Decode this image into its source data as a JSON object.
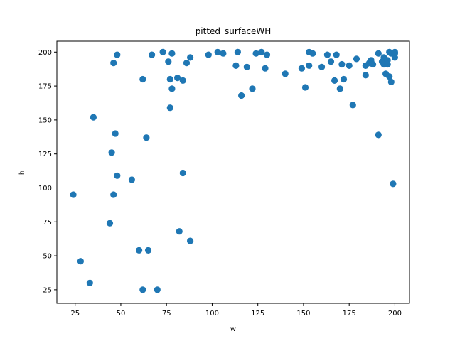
{
  "chart_data": {
    "type": "scatter",
    "title": "pitted_surfaceWH",
    "xlabel": "w",
    "ylabel": "h",
    "xlim": [
      15,
      208
    ],
    "ylim": [
      15,
      208
    ],
    "xticks": [
      25,
      50,
      75,
      100,
      125,
      150,
      175,
      200
    ],
    "yticks": [
      25,
      50,
      75,
      100,
      125,
      150,
      175,
      200
    ],
    "grid": false,
    "marker_color": "#1f77b4",
    "points": [
      [
        24,
        95
      ],
      [
        28,
        46
      ],
      [
        33,
        30
      ],
      [
        35,
        152
      ],
      [
        44,
        74
      ],
      [
        45,
        126
      ],
      [
        46,
        192
      ],
      [
        46,
        95
      ],
      [
        47,
        140
      ],
      [
        48,
        198
      ],
      [
        48,
        109
      ],
      [
        56,
        106
      ],
      [
        60,
        54
      ],
      [
        62,
        180
      ],
      [
        62,
        25
      ],
      [
        64,
        137
      ],
      [
        65,
        54
      ],
      [
        67,
        198
      ],
      [
        70,
        25
      ],
      [
        73,
        200
      ],
      [
        76,
        193
      ],
      [
        77,
        180
      ],
      [
        77,
        159
      ],
      [
        78,
        173
      ],
      [
        78,
        199
      ],
      [
        81,
        181
      ],
      [
        82,
        68
      ],
      [
        84,
        179
      ],
      [
        84,
        111
      ],
      [
        86,
        192
      ],
      [
        88,
        196
      ],
      [
        88,
        61
      ],
      [
        98,
        198
      ],
      [
        103,
        200
      ],
      [
        106,
        199
      ],
      [
        113,
        190
      ],
      [
        114,
        200
      ],
      [
        116,
        168
      ],
      [
        119,
        189
      ],
      [
        122,
        173
      ],
      [
        124,
        199
      ],
      [
        127,
        200
      ],
      [
        129,
        188
      ],
      [
        130,
        198
      ],
      [
        140,
        184
      ],
      [
        149,
        188
      ],
      [
        151,
        174
      ],
      [
        153,
        190
      ],
      [
        153,
        200
      ],
      [
        155,
        199
      ],
      [
        160,
        189
      ],
      [
        163,
        198
      ],
      [
        165,
        193
      ],
      [
        167,
        179
      ],
      [
        168,
        198
      ],
      [
        170,
        173
      ],
      [
        171,
        191
      ],
      [
        172,
        180
      ],
      [
        175,
        190
      ],
      [
        177,
        161
      ],
      [
        179,
        195
      ],
      [
        184,
        183
      ],
      [
        184,
        190
      ],
      [
        186,
        192
      ],
      [
        187,
        194
      ],
      [
        188,
        191
      ],
      [
        191,
        139
      ],
      [
        191,
        199
      ],
      [
        193,
        193
      ],
      [
        194,
        196
      ],
      [
        194,
        191
      ],
      [
        195,
        184
      ],
      [
        196,
        194
      ],
      [
        197,
        182
      ],
      [
        197,
        200
      ],
      [
        198,
        178
      ],
      [
        198,
        199
      ],
      [
        199,
        103
      ],
      [
        200,
        199
      ],
      [
        200,
        196
      ],
      [
        200,
        200
      ],
      [
        196,
        191
      ]
    ]
  }
}
